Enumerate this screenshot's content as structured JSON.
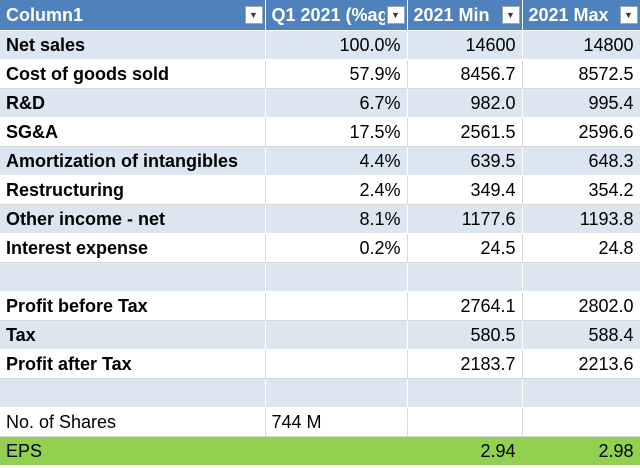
{
  "columns": [
    {
      "label": "Column1"
    },
    {
      "label": "Q1 2021 (%ag"
    },
    {
      "label": "2021 Min"
    },
    {
      "label": "2021 Max"
    }
  ],
  "rows": [
    {
      "label": "Net sales",
      "pct": "100.0%",
      "min": "14600",
      "max": "14800"
    },
    {
      "label": "Cost of goods sold",
      "pct": "57.9%",
      "min": "8456.7",
      "max": "8572.5"
    },
    {
      "label": "R&D",
      "pct": "6.7%",
      "min": "982.0",
      "max": "995.4"
    },
    {
      "label": "SG&A",
      "pct": "17.5%",
      "min": "2561.5",
      "max": "2596.6"
    },
    {
      "label": "Amortization of intangibles",
      "pct": "4.4%",
      "min": "639.5",
      "max": "648.3"
    },
    {
      "label": "Restructuring",
      "pct": "2.4%",
      "min": "349.4",
      "max": "354.2"
    },
    {
      "label": "Other income - net",
      "pct": "8.1%",
      "min": "1177.6",
      "max": "1193.8"
    },
    {
      "label": "Interest expense",
      "pct": "0.2%",
      "min": "24.5",
      "max": "24.8"
    },
    {
      "label": "",
      "pct": "",
      "min": "",
      "max": ""
    },
    {
      "label": "Profit before Tax",
      "pct": "",
      "min": "2764.1",
      "max": "2802.0"
    },
    {
      "label": "Tax",
      "pct": "",
      "min": "580.5",
      "max": "588.4"
    },
    {
      "label": "Profit after Tax",
      "pct": "",
      "min": "2183.7",
      "max": "2213.6"
    },
    {
      "label": "",
      "pct": "",
      "min": "",
      "max": ""
    },
    {
      "label": "No. of Shares",
      "pct": "744 M",
      "min": "",
      "max": ""
    },
    {
      "label": "EPS",
      "pct": "",
      "min": "2.94",
      "max": "2.98"
    }
  ],
  "colors": {
    "header": "#4f81bd",
    "band": "#dce6f1",
    "eps_highlight": "#92d050"
  },
  "icons": {
    "filter_dropdown": "chevron-down-icon"
  }
}
